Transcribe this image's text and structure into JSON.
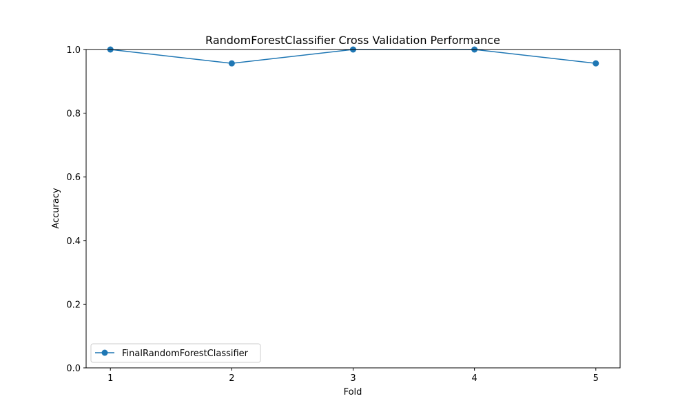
{
  "chart_data": {
    "type": "line",
    "title": "RandomForestClassifier Cross Validation Performance",
    "xlabel": "Fold",
    "ylabel": "Accuracy",
    "x": [
      1,
      2,
      3,
      4,
      5
    ],
    "xticks": [
      "1",
      "2",
      "3",
      "4",
      "5"
    ],
    "xlim": [
      0.8,
      5.2
    ],
    "ylim": [
      0.0,
      1.0
    ],
    "yticks": [
      "0.0",
      "0.2",
      "0.4",
      "0.6",
      "0.8",
      "1.0"
    ],
    "series": [
      {
        "name": "FinalRandomForestClassifier",
        "values": [
          1.0,
          0.9565,
          1.0,
          1.0,
          0.9565
        ],
        "color": "#1f77b4",
        "marker": "circle"
      }
    ],
    "legend": "lower-left",
    "grid": false
  }
}
